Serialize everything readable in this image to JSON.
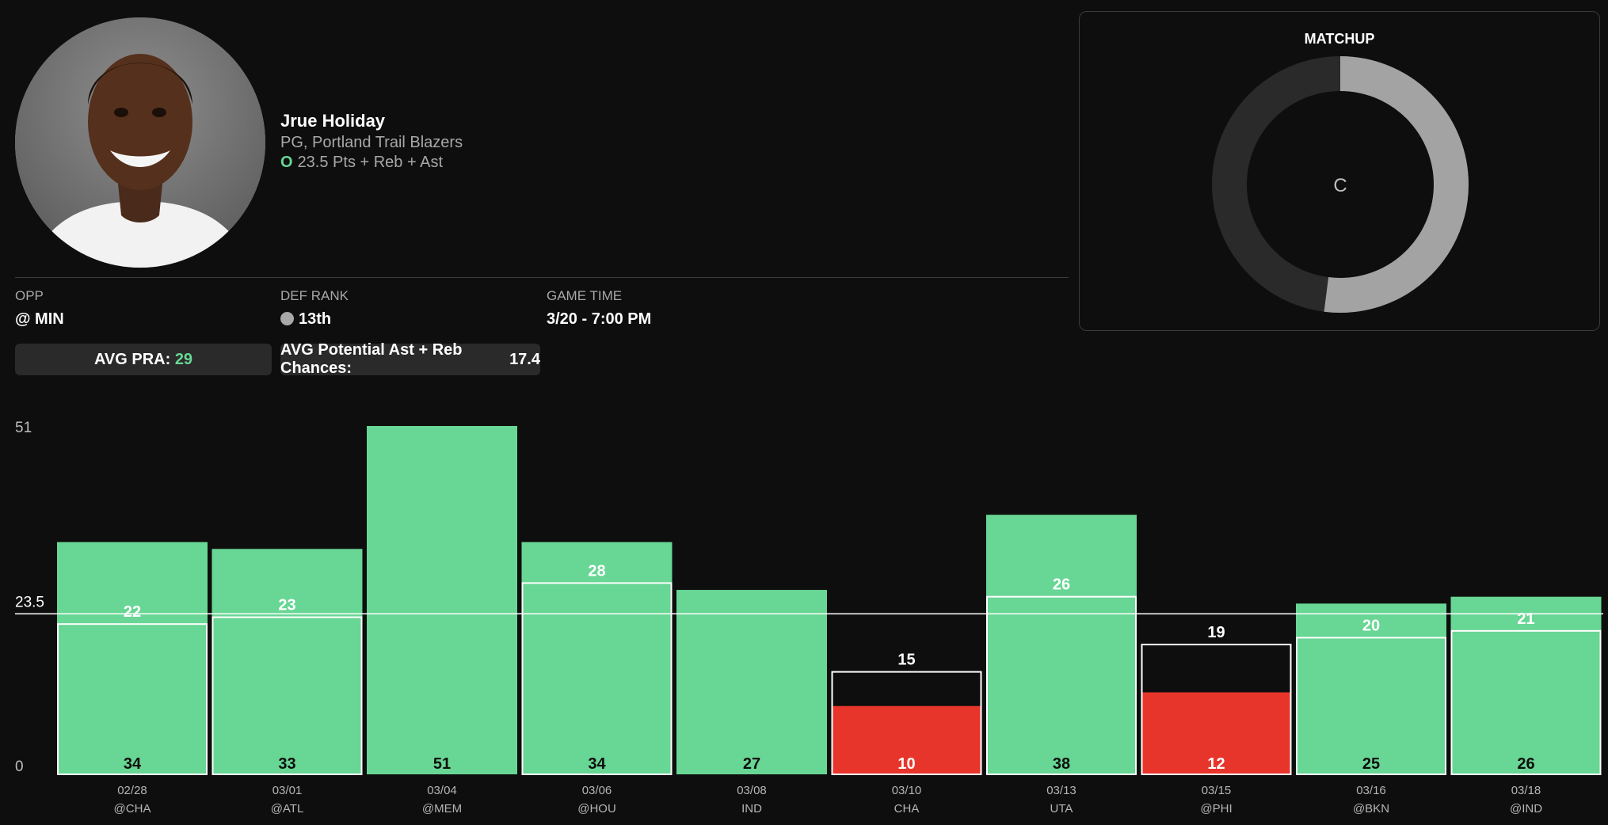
{
  "player": {
    "name": "Jrue Holiday",
    "position_team": "PG, Portland Trail Blazers",
    "prop_side": "O",
    "prop_text": "23.5 Pts + Reb + Ast"
  },
  "info": {
    "opp_label": "OPP",
    "opp_value": "@ MIN",
    "def_rank_label": "DEF RANK",
    "def_rank_value": "13th",
    "game_time_label": "GAME TIME",
    "game_time_value": "3/20 - 7:00 PM"
  },
  "pills": {
    "avg_pra_label": "AVG PRA:",
    "avg_pra_value": "29",
    "avg_chances_label": "AVG Potential Ast + Reb Chances:",
    "avg_chances_value": "17.4"
  },
  "matchup": {
    "title": "MATCHUP",
    "grade": "C",
    "fill_fraction": 0.52
  },
  "colors": {
    "over": "#68d694",
    "under": "#e8352b",
    "ring_fill": "#a3a3a3",
    "ring_track": "#2a2a2a"
  },
  "chart_data": {
    "type": "bar",
    "ylim": [
      0,
      51
    ],
    "ytick_labels": [
      "0",
      "51"
    ],
    "line_value": 23.5,
    "line_label": "23.5",
    "categories": [
      "02/28",
      "03/01",
      "03/04",
      "03/06",
      "03/08",
      "03/10",
      "03/13",
      "03/15",
      "03/16",
      "03/18"
    ],
    "opponents": [
      "@CHA",
      "@ATL",
      "@MEM",
      "@HOU",
      "IND",
      "CHA",
      "UTA",
      "@PHI",
      "@BKN",
      "@IND"
    ],
    "series": [
      {
        "values": [
          34,
          33,
          51,
          34,
          27,
          10,
          38,
          12,
          25,
          26
        ]
      },
      {
        "values": [
          22,
          23,
          null,
          28,
          null,
          15,
          26,
          19,
          20,
          21
        ]
      }
    ]
  }
}
